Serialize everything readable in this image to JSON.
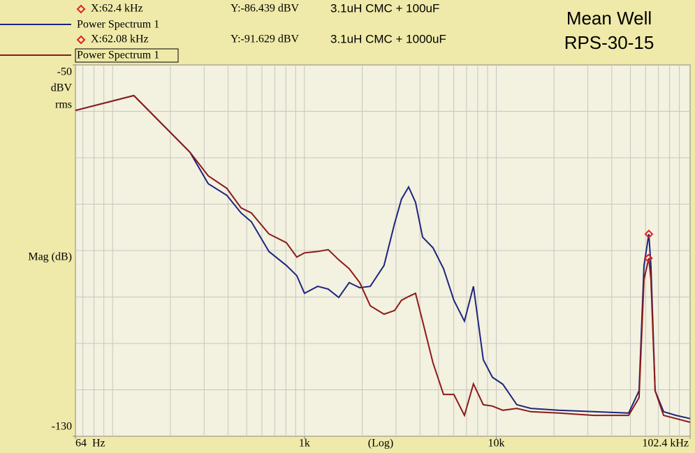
{
  "chart_data": {
    "type": "line",
    "title": [
      "Mean Well",
      "RPS-30-15"
    ],
    "xlabel": "(Log)",
    "ylabel": "Mag (dB)",
    "yunit": [
      "dBV",
      "rms"
    ],
    "xscale": "log",
    "xlim": [
      64,
      102400
    ],
    "xticks": [
      {
        "value": 64,
        "label": "64  Hz"
      },
      {
        "value": 1000,
        "label": "1k"
      },
      {
        "value": 10000,
        "label": "10k"
      },
      {
        "value": 102400,
        "label": "102.4 kHz"
      }
    ],
    "x_grid": [
      70,
      80,
      90,
      100,
      200,
      300,
      400,
      500,
      600,
      700,
      800,
      900,
      1000,
      2000,
      3000,
      4000,
      5000,
      6000,
      7000,
      8000,
      9000,
      10000,
      20000,
      30000,
      40000,
      50000,
      60000,
      70000,
      80000,
      90000
    ],
    "ylim": [
      -130,
      -50
    ],
    "yticks": [
      -50,
      -130
    ],
    "y_grid": [
      -60,
      -70,
      -80,
      -90,
      -100,
      -110,
      -120
    ],
    "grid": true,
    "x": [
      64,
      129,
      253,
      315,
      394,
      467,
      529,
      653,
      805,
      912,
      1000,
      1172,
      1330,
      1510,
      1710,
      1941,
      2203,
      2600,
      2951,
      3206,
      3491,
      3793,
      4130,
      4677,
      5309,
      6012,
      6823,
      7603,
      8551,
      9550,
      10815,
      12794,
      15136,
      21184,
      32211,
      48978,
      55463,
      58884,
      62400,
      63973,
      67298,
      74473,
      86497,
      102400
    ],
    "series": [
      {
        "name": "Power Spectrum 1",
        "color": "#1c2580",
        "note": "3.1uH CMC + 100uF",
        "note_color": "#1a28c0",
        "values": [
          -59.8,
          -56.6,
          -68.8,
          -75.6,
          -78.1,
          -81.9,
          -83.8,
          -90.2,
          -93.2,
          -95.4,
          -99.2,
          -97.7,
          -98.3,
          -100.1,
          -96.9,
          -98.0,
          -97.7,
          -93.2,
          -84.1,
          -78.9,
          -76.3,
          -79.6,
          -87.1,
          -89.4,
          -93.9,
          -100.7,
          -105.2,
          -97.7,
          -113.5,
          -117.3,
          -118.8,
          -123.2,
          -124.0,
          -124.4,
          -124.7,
          -125.0,
          -120.2,
          -93.2,
          -86.439,
          -93.2,
          -120.2,
          -124.7,
          -125.5,
          -126.2
        ],
        "marker": {
          "x": 62400,
          "y": -86.439,
          "x_label": "X:62.4 kHz",
          "y_label": "Y:-86.439 dBV"
        }
      },
      {
        "name": "Power Spectrum 1",
        "color": "#8b1a1a",
        "note": "3.1uH CMC + 1000uF",
        "note_color": "#8a4a00",
        "values": [
          -59.8,
          -56.6,
          -68.8,
          -73.9,
          -76.6,
          -80.8,
          -81.9,
          -86.4,
          -88.3,
          -91.4,
          -90.5,
          -90.2,
          -89.8,
          -92.0,
          -93.9,
          -96.9,
          -101.9,
          -103.7,
          -102.9,
          -100.7,
          -99.9,
          -99.2,
          -105.2,
          -114.2,
          -121.0,
          -121.0,
          -125.5,
          -118.7,
          -123.2,
          -123.5,
          -124.4,
          -124.0,
          -124.7,
          -125.0,
          -125.5,
          -125.5,
          -121.7,
          -96.2,
          -91.629,
          -96.2,
          -120.2,
          -125.5,
          -126.2,
          -127.0
        ],
        "marker": {
          "x": 62080,
          "y": -91.629,
          "x_label": "X:62.08 kHz",
          "y_label": "Y:-91.629 dBV"
        }
      }
    ]
  }
}
